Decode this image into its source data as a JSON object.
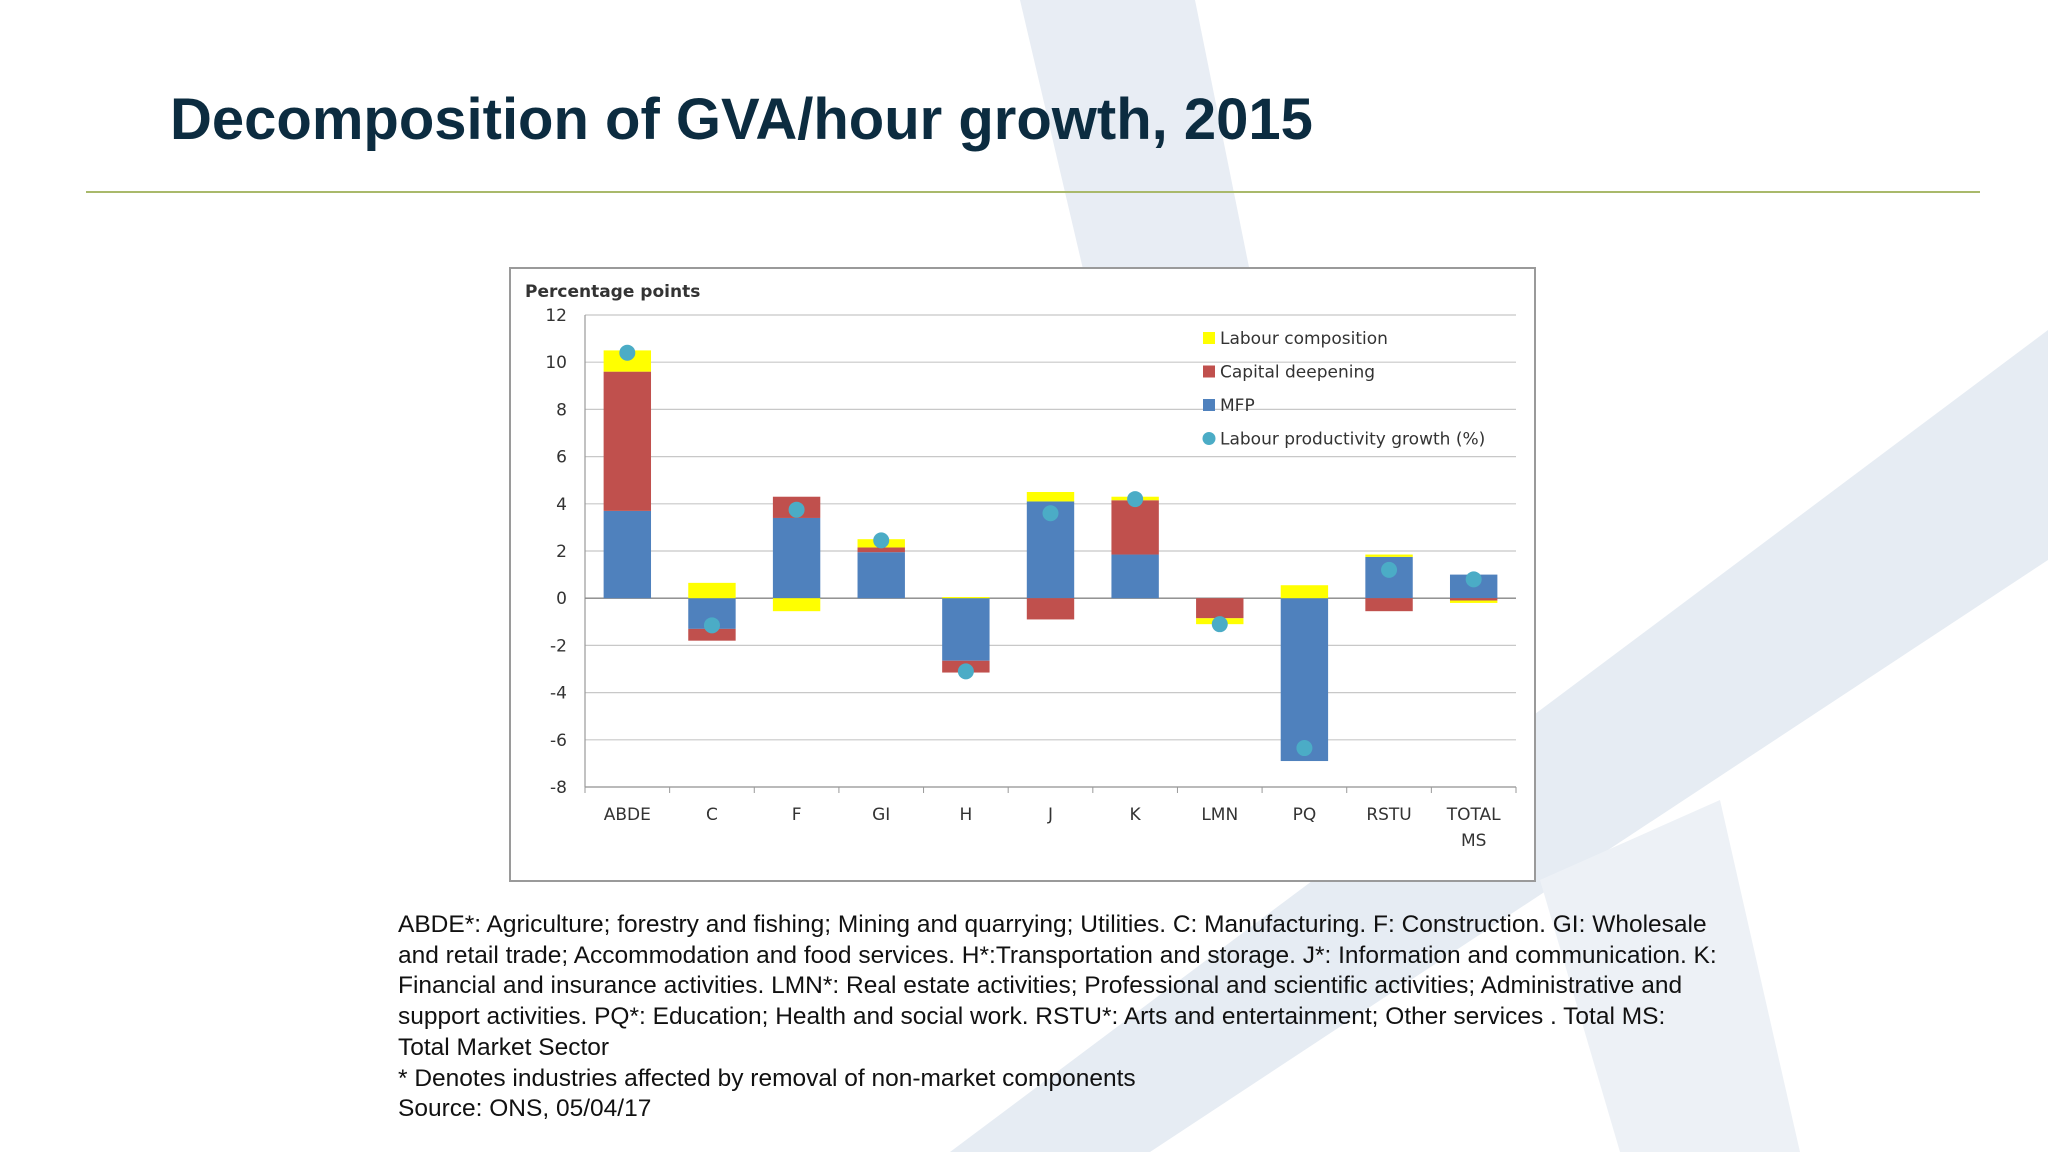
{
  "slide": {
    "title": "Decomposition of GVA/hour growth, 2015",
    "footnote_definitions": "ABDE*: Agriculture; forestry and fishing; Mining and quarrying; Utilities. C: Manufacturing. F: Construction. GI: Wholesale and retail trade; Accommodation and food services. H*:Transportation and storage. J*: Information and communication. K: Financial and insurance activities. LMN*: Real estate activities; Professional and scientific activities; Administrative and support activities. PQ*: Education; Health and social work. RSTU*: Arts and entertainment; Other services . Total MS: Total Market Sector",
    "footnote_asterisk": "* Denotes industries affected by removal of non-market components",
    "footnote_source": "Source: ONS, 05/04/17"
  },
  "colors": {
    "title": "#0c2c40",
    "labour_composition": "#ffff00",
    "capital_deepening": "#c0504d",
    "mfp": "#4f81bd",
    "labour_productivity": "#4bacc6",
    "rule": "#a9b96b"
  },
  "chart_data": {
    "type": "bar",
    "stacked": true,
    "ylabel": "Percentage points",
    "ylim": [
      -8,
      12
    ],
    "yticks": [
      -8,
      -6,
      -4,
      -2,
      0,
      2,
      4,
      6,
      8,
      10,
      12
    ],
    "grid": true,
    "legend": "top-right",
    "categories": [
      "ABDE",
      "C",
      "F",
      "GI",
      "H",
      "J",
      "K",
      "LMN",
      "PQ",
      "RSTU",
      "TOTAL MS"
    ],
    "series": [
      {
        "name": "Labour composition",
        "type": "bar",
        "values": [
          0.9,
          0.65,
          -0.55,
          0.35,
          0.05,
          0.4,
          0.15,
          -0.25,
          0.55,
          0.1,
          -0.1
        ]
      },
      {
        "name": "Capital deepening",
        "type": "bar",
        "values": [
          5.9,
          -0.5,
          0.9,
          0.2,
          -0.5,
          -0.9,
          2.3,
          -0.85,
          0.0,
          -0.55,
          -0.1
        ]
      },
      {
        "name": "MFP",
        "type": "bar",
        "values": [
          3.7,
          -1.3,
          3.4,
          1.95,
          -2.65,
          4.1,
          1.85,
          0.0,
          -6.9,
          1.75,
          1.0
        ]
      },
      {
        "name": "Labour productivity growth (%)",
        "type": "scatter",
        "values": [
          10.4,
          -1.15,
          3.75,
          2.45,
          -3.1,
          3.6,
          4.2,
          -1.1,
          -6.35,
          1.2,
          0.8
        ]
      }
    ]
  }
}
